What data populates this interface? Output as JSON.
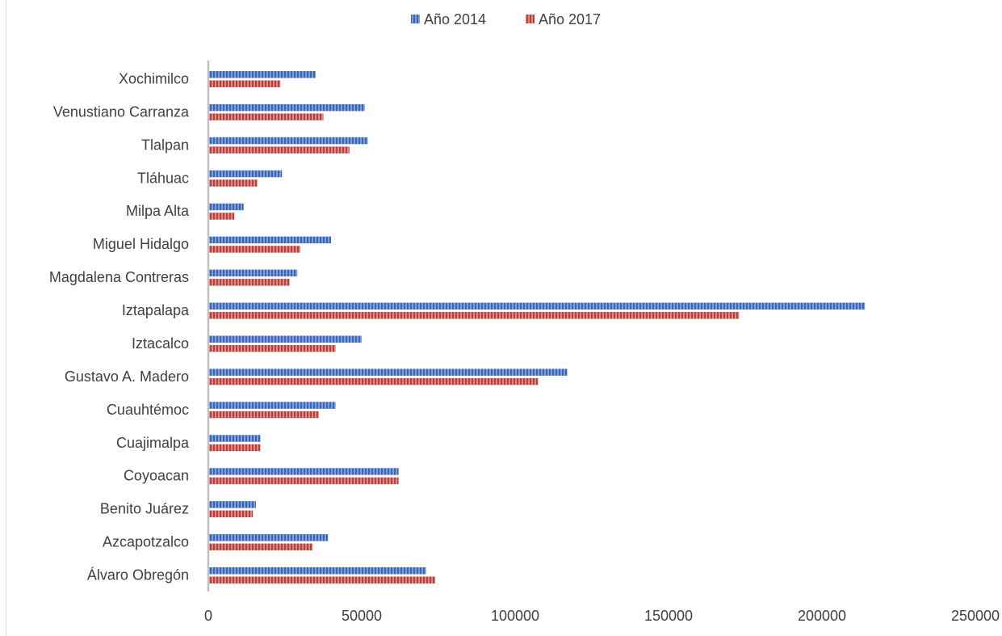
{
  "chart_data": {
    "type": "bar",
    "orientation": "horizontal",
    "categories": [
      "Xochimilco",
      "Venustiano Carranza",
      "Tlalpan",
      "Tláhuac",
      "Milpa Alta",
      "Miguel Hidalgo",
      "Magdalena Contreras",
      "Iztapalapa",
      "Iztacalco",
      "Gustavo A. Madero",
      "Cuauhtémoc",
      "Cuajimalpa",
      "Coyoacan",
      "Benito Juárez",
      "Azcapotzalco",
      "Álvaro Obregón"
    ],
    "series": [
      {
        "name": "Año 2014",
        "color": "#4472C4",
        "values": [
          35000,
          51000,
          52000,
          24000,
          11500,
          40000,
          29000,
          214000,
          50000,
          117000,
          41500,
          17000,
          62000,
          15500,
          39000,
          71000
        ]
      },
      {
        "name": "Año 2017",
        "color": "#C0504D",
        "values": [
          23500,
          37500,
          46000,
          16000,
          8500,
          30000,
          26500,
          173000,
          41500,
          107500,
          36000,
          17000,
          62000,
          14500,
          34000,
          74000
        ]
      }
    ],
    "xlim": [
      0,
      250000
    ],
    "xticks": [
      "0",
      "50000",
      "100000",
      "150000",
      "200000",
      "250000"
    ],
    "title": "",
    "xlabel": "",
    "ylabel": "",
    "legend_position": "top",
    "grid": false
  }
}
